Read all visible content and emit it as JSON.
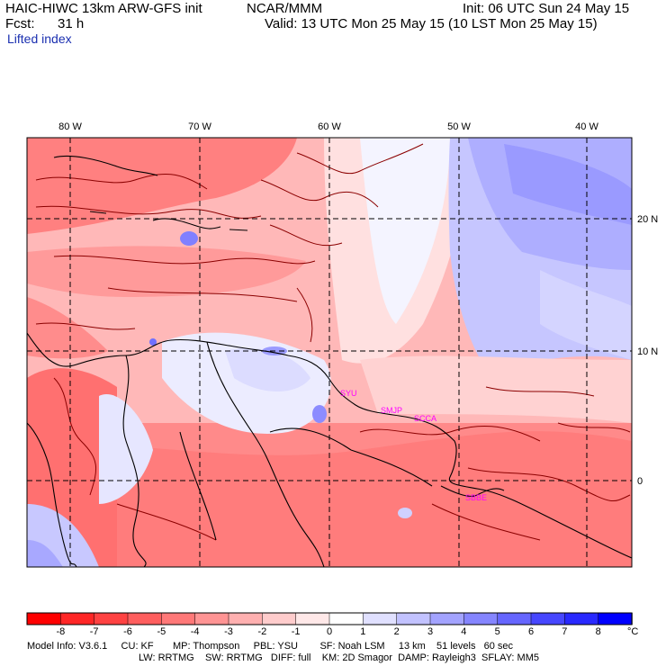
{
  "header": {
    "title": "HAIC-HIWC 13km ARW-GFS init",
    "org": "NCAR/MMM",
    "init": "Init: 06 UTC Sun 24 May 15",
    "fcst_label": "Fcst:",
    "fcst_value": "31 h",
    "valid": "Valid: 13 UTC Mon 25 May 15 (10 LST Mon 25 May 15)",
    "field": "Lifted index"
  },
  "map": {
    "lon_labels": [
      "80 W",
      "70 W",
      "60 W",
      "50 W",
      "40 W"
    ],
    "lat_labels": [
      "20 N",
      "10 N",
      "0"
    ],
    "stations": [
      "SYU",
      "SMJP",
      "SCCA",
      "SBBE"
    ],
    "colors": {
      "frame": "#000000",
      "coast": "#000000",
      "contour": "#8b0000",
      "grid": "#000000",
      "station": "#ff00ff"
    }
  },
  "colorbar": {
    "labels": [
      "-8",
      "-7",
      "-6",
      "-5",
      "-4",
      "-3",
      "-2",
      "-1",
      "0",
      "1",
      "2",
      "3",
      "4",
      "5",
      "6",
      "7",
      "8"
    ],
    "unit": "°C",
    "colors": [
      "#ff0000",
      "#ff2626",
      "#ff4242",
      "#ff5e5e",
      "#ff7878",
      "#ff9494",
      "#ffb0b0",
      "#ffcccc",
      "#ffe8e8",
      "#ffffff",
      "#e0e0ff",
      "#c2c2ff",
      "#a3a3ff",
      "#8585ff",
      "#6666ff",
      "#4747ff",
      "#2929ff",
      "#0000ff"
    ]
  },
  "footer": {
    "line1": "Model Info: V3.6.1     CU: KF       MP: Thompson     PBL: YSU        SF: Noah LSM     13 km    51 levels   60 sec",
    "line2": "LW: RRTMG    SW: RRTMG   DIFF: full    KM: 2D Smagor  DAMP: Rayleigh3  SFLAY: MM5"
  }
}
